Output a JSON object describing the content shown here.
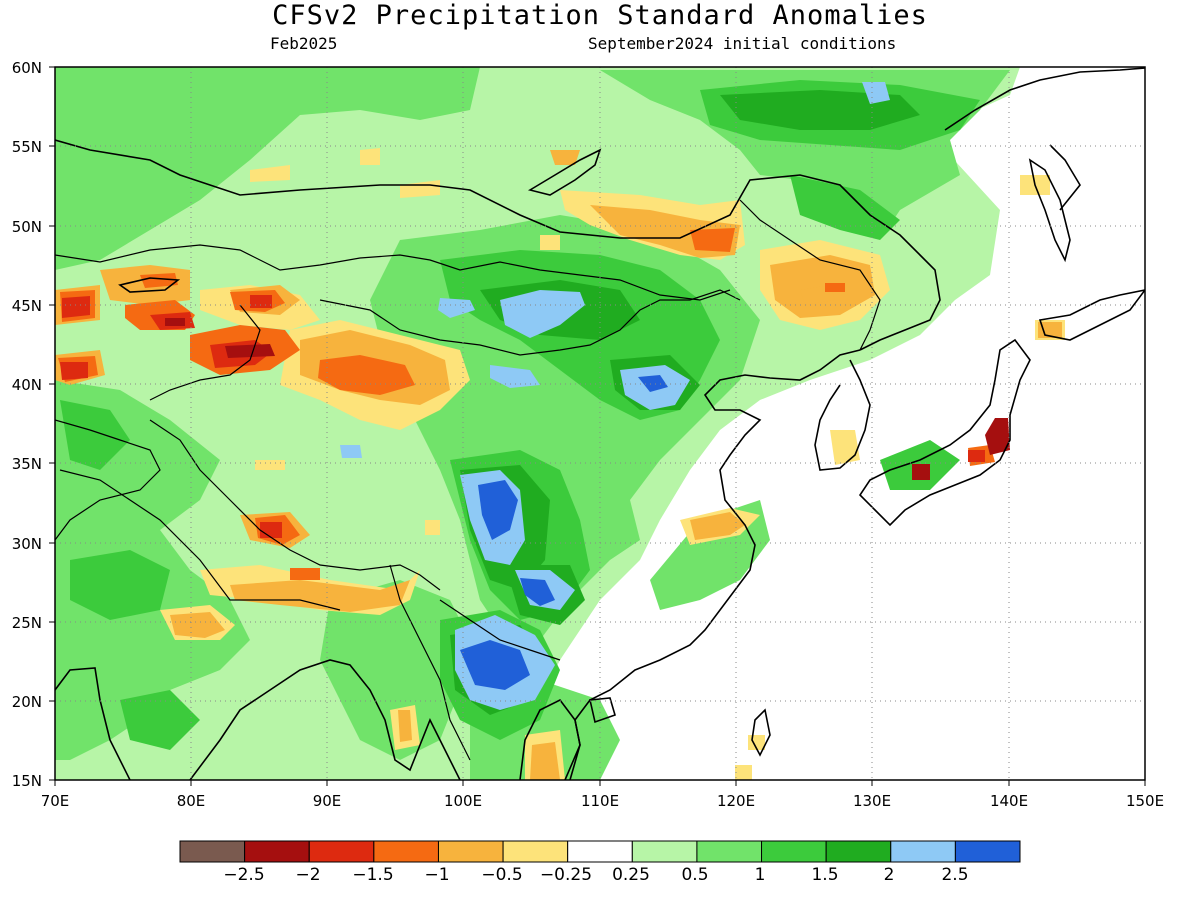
{
  "header": {
    "title": "CFSv2 Precipitation Standard Anomalies",
    "valid_month": "Feb2025",
    "init": "September2024 initial conditions"
  },
  "map": {
    "lon_range": [
      70,
      150
    ],
    "lat_range": [
      15,
      60
    ],
    "lon_ticks": [
      "70E",
      "80E",
      "90E",
      "100E",
      "110E",
      "120E",
      "130E",
      "140E",
      "150E"
    ],
    "lat_ticks": [
      "60N",
      "55N",
      "50N",
      "45N",
      "40N",
      "35N",
      "30N",
      "25N",
      "20N",
      "15N"
    ],
    "grid": true
  },
  "colorbar": {
    "colors": [
      "#7a5a4f",
      "#a50f0f",
      "#dd2a10",
      "#f56a12",
      "#f7b33d",
      "#fde37a",
      "#ffffff",
      "#b7f5a7",
      "#71e36a",
      "#3ccb3c",
      "#20ac20",
      "#8ec9f5",
      "#2060d8"
    ],
    "labels": [
      "−2.5",
      "−2",
      "−1.5",
      "−1",
      "−0.5",
      "−0.25",
      "0.25",
      "0.5",
      "1",
      "1.5",
      "2",
      "2.5"
    ]
  },
  "chart_data": {
    "type": "heatmap",
    "title": "CFSv2 Precipitation Standard Anomalies",
    "subtitle": "Feb2025 / September2024 initial conditions",
    "xlim": [
      70,
      150
    ],
    "ylim": [
      15,
      60
    ],
    "levels": [
      -2.5,
      -2,
      -1.5,
      -1,
      -0.5,
      -0.25,
      0.25,
      0.5,
      1,
      1.5,
      2,
      2.5
    ],
    "wet_centers": [
      {
        "lon": 102,
        "lat": 32,
        "value": 2.5
      },
      {
        "lon": 102,
        "lat": 22,
        "value": 2.5
      },
      {
        "lon": 113,
        "lat": 40,
        "value": 2.5
      },
      {
        "lon": 105,
        "lat": 44.5,
        "value": 2.0
      },
      {
        "lon": 130,
        "lat": 58,
        "value": 2.0
      }
    ],
    "dry_centers": [
      {
        "lon": 84,
        "lat": 42,
        "value": -2.0
      },
      {
        "lon": 139,
        "lat": 37,
        "value": -2.0
      },
      {
        "lon": 133.5,
        "lat": 34.5,
        "value": -2.0
      },
      {
        "lon": 92,
        "lat": 40.5,
        "value": -1.0
      },
      {
        "lon": 125,
        "lat": 46,
        "value": -0.5
      }
    ]
  }
}
